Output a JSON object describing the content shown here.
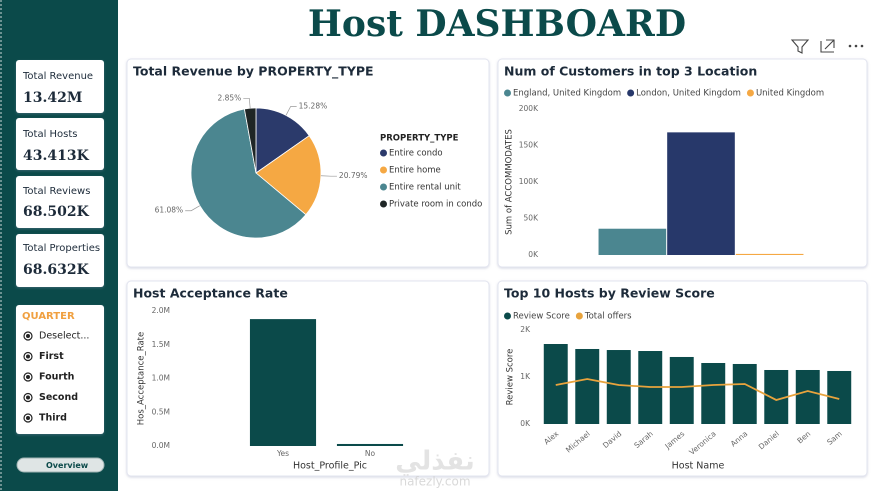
{
  "header": {
    "title": "Host DASHBOARD"
  },
  "kpis": [
    {
      "label": "Total Revenue",
      "value": "13.42M"
    },
    {
      "label": "Total Hosts",
      "value": "43.413K"
    },
    {
      "label": "Total Reviews",
      "value": "68.502K"
    },
    {
      "label": "Total Properties",
      "value": "68.632K"
    }
  ],
  "slicer": {
    "title": "QUARTER",
    "items": [
      "Deselect...",
      "First",
      "Fourth",
      "Second",
      "Third"
    ]
  },
  "nav": {
    "button": "Overview"
  },
  "watermark": {
    "arabic": "نفذلي",
    "latin": "nafezly.com"
  },
  "chart_data": [
    {
      "type": "pie",
      "title": "Total Revenue by PROPERTY_TYPE",
      "legend_title": "PROPERTY_TYPE",
      "categories": [
        "Entire condo",
        "Entire home",
        "Entire rental unit",
        "Private room in condo"
      ],
      "values": [
        15.28,
        20.79,
        61.08,
        2.85
      ],
      "value_labels": [
        "15.28%",
        "20.79%",
        "61.08%",
        "2.85%"
      ],
      "colors": [
        "#2b3a6b",
        "#f5a843",
        "#4b8690",
        "#1f2626"
      ],
      "legend": "right"
    },
    {
      "type": "bar",
      "title": "Num of Customers in top 3 Location",
      "ylabel": "Sum of ACCOMMODATES",
      "categories": [
        null
      ],
      "series": [
        {
          "name": "England, United Kingdom",
          "color": "#4b8690",
          "values": [
            36000
          ]
        },
        {
          "name": "London, United Kingdom",
          "color": "#27386a",
          "values": [
            168000
          ]
        },
        {
          "name": "United Kingdom",
          "color": "#f5a843",
          "values": [
            1500
          ]
        }
      ],
      "ylim": [
        0,
        200000
      ],
      "yticks": [
        {
          "value": 0,
          "label": "0K"
        },
        {
          "value": 50000,
          "label": "50K"
        },
        {
          "value": 100000,
          "label": "100K"
        },
        {
          "value": 150000,
          "label": "150K"
        },
        {
          "value": 200000,
          "label": "200K"
        }
      ],
      "legend": "top"
    },
    {
      "type": "bar",
      "title": "Host Acceptance Rate",
      "xlabel": "Host_Profile_Pic",
      "ylabel": "Hos_Acceptance_Rate",
      "categories": [
        "Yes",
        "No"
      ],
      "values": [
        1880000,
        30000
      ],
      "color": "#0b4a4a",
      "ylim": [
        0,
        2000000
      ],
      "yticks": [
        {
          "value": 0,
          "label": "0.0M"
        },
        {
          "value": 500000,
          "label": "0.5M"
        },
        {
          "value": 1000000,
          "label": "1.0M"
        },
        {
          "value": 1500000,
          "label": "1.5M"
        },
        {
          "value": 2000000,
          "label": "2.0M"
        }
      ]
    },
    {
      "type": "combo",
      "title": "Top 10 Hosts by Review Score",
      "xlabel": "Host Name",
      "ylabel": "Review Score",
      "categories": [
        "Alex",
        "Michael",
        "David",
        "Sarah",
        "James",
        "Veronica",
        "Anna",
        "Daniel",
        "Ben",
        "Sam"
      ],
      "series": [
        {
          "name": "Review Score",
          "type": "bar",
          "color": "#0b4a4a",
          "values": [
            1702,
            1596,
            1574,
            1553,
            1426,
            1298,
            1277,
            1149,
            1149,
            1128
          ]
        },
        {
          "name": "Total offers",
          "type": "line",
          "color": "#e8a33d",
          "values": [
            830,
            957,
            830,
            787,
            787,
            830,
            851,
            511,
            702,
            532
          ]
        }
      ],
      "ylim": [
        0,
        2000
      ],
      "yticks": [
        {
          "value": 0,
          "label": "0K"
        },
        {
          "value": 1000,
          "label": "1K"
        },
        {
          "value": 2000,
          "label": "2K"
        }
      ],
      "legend": "top"
    }
  ]
}
